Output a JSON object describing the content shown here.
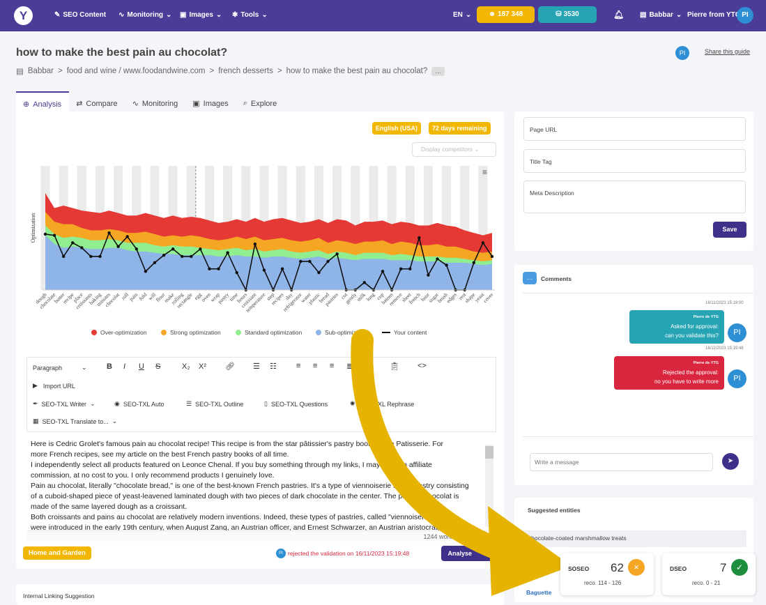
{
  "topbar": {
    "seo_content": "SEO Content",
    "monitoring": "Monitoring",
    "images": "Images",
    "tools": "Tools",
    "lang": "EN",
    "credits_1": "187 348",
    "credits_2": "3530",
    "account": "Babbar",
    "user": "Pierre from YTG",
    "user_initials": "PI"
  },
  "page": {
    "title": "how to make the best pain au chocolat?",
    "share": "Share this guide",
    "avatar": "PI"
  },
  "breadcrumb": [
    "Babbar",
    ">",
    "food and wine / www.foodandwine.com",
    ">",
    "french desserts",
    ">",
    "how to make the best pain au chocolat?",
    "..."
  ],
  "tabs": [
    {
      "label": "Analysis",
      "icon": "analysis-icon"
    },
    {
      "label": "Compare",
      "icon": "compare-icon"
    },
    {
      "label": "Monitoring",
      "icon": "monitoring-icon"
    },
    {
      "label": "Images",
      "icon": "images-icon"
    },
    {
      "label": "Explore",
      "icon": "search-icon"
    }
  ],
  "badges": {
    "language": "English (USA)",
    "remaining": "72 days remaining",
    "display_competitors": "Display competitors"
  },
  "chart_data": {
    "type": "area",
    "ylabel": "Optimization",
    "categories": [
      "dough",
      "chocolate",
      "butter",
      "recipe",
      "place",
      "croissants",
      "baking",
      "minutes",
      "chocolat",
      "roll",
      "pain",
      "fold",
      "will",
      "flour",
      "make",
      "rolling",
      "rectangle",
      "egg",
      "oven",
      "wrap",
      "pastry",
      "time",
      "hours",
      "croissant",
      "temperature",
      "step",
      "recipes",
      "day",
      "refrigerator",
      "water",
      "plastic",
      "bread",
      "pastries",
      "cut",
      "gently",
      "milk",
      "long",
      "cup",
      "batons",
      "remove",
      "sheet",
      "french",
      "hour",
      "sugar",
      "brush",
      "edges",
      "rest",
      "shape",
      "yeast",
      "cover"
    ],
    "series": [
      {
        "name": "Over-optimization",
        "color": "#e53935",
        "values": [
          78,
          66,
          68,
          66,
          64,
          63,
          62,
          64,
          62,
          60,
          60,
          62,
          60,
          58,
          60,
          58,
          59,
          58,
          56,
          54,
          55,
          57,
          55,
          58,
          55,
          57,
          58,
          56,
          54,
          55,
          57,
          54,
          57,
          56,
          52,
          55,
          55,
          56,
          53,
          55,
          54,
          52,
          52,
          54,
          52,
          51,
          48,
          46,
          44,
          46
        ]
      },
      {
        "name": "Strong optimization",
        "color": "#f5a623",
        "values": [
          63,
          55,
          53,
          53,
          50,
          48,
          48,
          49,
          48,
          46,
          46,
          47,
          45,
          43,
          44,
          43,
          44,
          43,
          41,
          40,
          41,
          43,
          41,
          43,
          40,
          41,
          42,
          40,
          39,
          40,
          42,
          38,
          40,
          39,
          37,
          39,
          39,
          40,
          37,
          39,
          38,
          36,
          36,
          37,
          35,
          35,
          33,
          31,
          30,
          31
        ]
      },
      {
        "name": "Standard optimization",
        "color": "#90ee90",
        "values": [
          52,
          45,
          42,
          43,
          42,
          40,
          40,
          41,
          40,
          38,
          38,
          38,
          36,
          35,
          36,
          35,
          35,
          34,
          33,
          32,
          33,
          34,
          32,
          33,
          31,
          32,
          33,
          31,
          30,
          31,
          32,
          29,
          31,
          30,
          28,
          30,
          30,
          30,
          28,
          29,
          28,
          27,
          27,
          27,
          26,
          26,
          25,
          24,
          23,
          24
        ]
      },
      {
        "name": "Sub-optimization",
        "color": "#8fb4e8",
        "values": [
          44,
          37,
          34,
          35,
          34,
          33,
          33,
          34,
          34,
          32,
          31,
          31,
          30,
          29,
          29,
          28,
          28,
          28,
          28,
          27,
          27,
          28,
          27,
          27,
          26,
          27,
          27,
          26,
          25,
          26,
          27,
          25,
          26,
          25,
          24,
          25,
          25,
          25,
          24,
          24,
          24,
          23,
          23,
          23,
          22,
          22,
          22,
          21,
          20,
          21
        ]
      },
      {
        "name": "Your content",
        "color": "#111111",
        "values": [
          45,
          44,
          27,
          38,
          34,
          27,
          27,
          46,
          35,
          43,
          33,
          15,
          22,
          28,
          33,
          27,
          27,
          33,
          17,
          17,
          30,
          14,
          0,
          37,
          16,
          0,
          17,
          0,
          23,
          23,
          14,
          23,
          29,
          0,
          0,
          6,
          0,
          15,
          0,
          17,
          17,
          42,
          12,
          25,
          20,
          0,
          0,
          22,
          38,
          27
        ]
      }
    ]
  },
  "legend": [
    "Over-optimization",
    "Strong optimization",
    "Standard optimization",
    "Sub-optimization",
    "Your content"
  ],
  "editor": {
    "toolbar": {
      "paragraph": "Paragraph",
      "import_url": "Import URL",
      "writer": "SEO-TXL Writer",
      "auto": "SEO-TXL Auto",
      "outline": "SEO-TXL Outline",
      "questions": "SEO-TXL Questions",
      "rephrase": "SEO-TXL Rephrase",
      "translate": "SEO-TXL Translate to..."
    },
    "lines": [
      "Here is Cedric Grolet's famous pain au chocolat recipe! This recipe is from the star pâtissier's pastry book Opéra Patisserie. For",
      "more French recipes, see my article on the best French pastry books of all time.",
      "I independently select all products featured on Leonce Chenal. If you buy something through my links, I may earn an affiliate",
      "commission, at no cost to you. I only recommend products I genuinely love.",
      "Pain au chocolat, literally \"chocolate bread,\" is one of the best-known French pastries. It's a type of viennoiserie sweet pastry consisting",
      "of a cuboid-shaped piece of yeast-leavened laminated dough with two pieces of dark chocolate in the center. The pain au chocolat is",
      "made of the same layered dough as a croissant.",
      "Both croissants and pains au chocolat are relatively modern inventions. Indeed, these types of pastries, called \"viennoiseries\"",
      "were introduced in the early 19th century, when August Zang, an Austrian officer, and Ernest Schwarzer, an Austrian aristocrat, founded"
    ],
    "word_count": "1244 words"
  },
  "footer": {
    "category": "Home and Garden",
    "avatar": "PI",
    "rejected": "rejected the validation on 16/11/2023 15:19:48",
    "analyse": "Analyse"
  },
  "internal_linking": "Internal Linking Suggestion",
  "meta": {
    "page_url": "Page URL",
    "title_tag": "Title Tag",
    "meta_description": "Meta Description",
    "save": "Save"
  },
  "comments": {
    "title": "Comments",
    "messages": [
      {
        "time": "16/11/2023 15:19:00",
        "author": "Pierre de YTG",
        "line1": "Asked for approval:",
        "line2": "can you validate this?",
        "color": "#26a4b3",
        "avatar": "PI"
      },
      {
        "time": "16/11/2023 15:19:48",
        "author": "Pierre de YTG",
        "line1": "Rejected the approval:",
        "line2": "no you have to write more",
        "color": "#d9263e",
        "avatar": "PI"
      }
    ],
    "placeholder": "Write a message"
  },
  "entities": {
    "title": "Suggested entities",
    "first": "Chocolate-coated marshmallow treats",
    "second": "Baguette"
  },
  "scores": {
    "soseo_label": "SOSEO",
    "soseo_value": "62",
    "soseo_reco": "reco. 114 - 126",
    "dseo_label": "DSEO",
    "dseo_value": "7",
    "dseo_reco": "reco. 0 - 21"
  }
}
